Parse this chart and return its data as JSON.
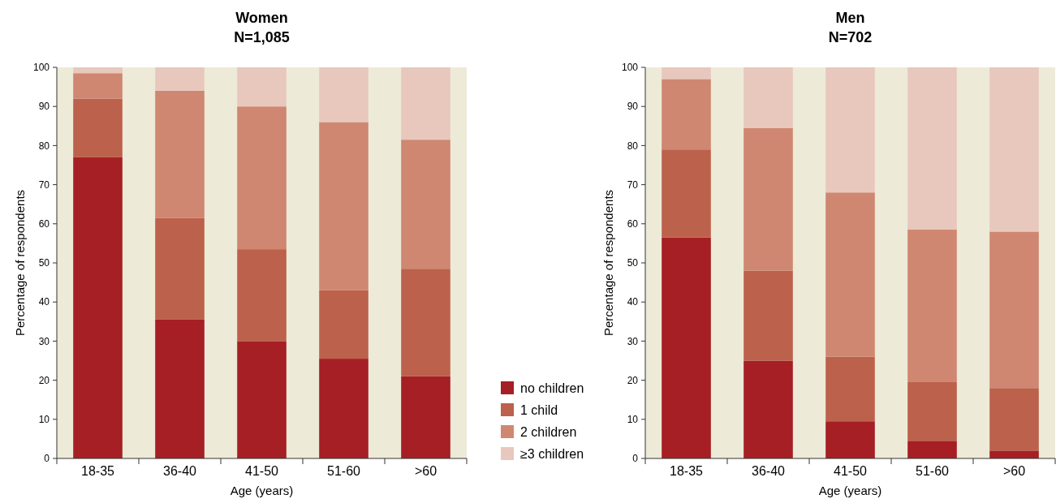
{
  "chart_data": [
    {
      "type": "bar",
      "title": "Women",
      "subtitle": "N=1,085",
      "xlabel": "Age (years)",
      "ylabel": "Percentage of respondents",
      "categories": [
        "18-35",
        "36-40",
        "41-50",
        "51-60",
        ">60"
      ],
      "stacked": true,
      "ylim": [
        0,
        100
      ],
      "yticks": [
        0,
        10,
        20,
        30,
        40,
        50,
        60,
        70,
        80,
        90,
        100
      ],
      "grid": false,
      "legend": "right",
      "series": [
        {
          "name": "no children",
          "color": "#a51f24",
          "values": [
            77,
            35.5,
            30,
            25.5,
            21
          ]
        },
        {
          "name": "1 child",
          "color": "#bc614b",
          "values": [
            15,
            26,
            23.5,
            17.5,
            27.5
          ]
        },
        {
          "name": "2 children",
          "color": "#cf8771",
          "values": [
            6.5,
            32.5,
            36.5,
            43,
            33
          ]
        },
        {
          "name": "≥3 children",
          "color": "#e8c8bd",
          "values": [
            1.5,
            6,
            10,
            14,
            18.5
          ]
        }
      ]
    },
    {
      "type": "bar",
      "title": "Men",
      "subtitle": "N=702",
      "xlabel": "Age (years)",
      "ylabel": "Percentage of respondents",
      "categories": [
        "18-35",
        "36-40",
        "41-50",
        "51-60",
        ">60"
      ],
      "stacked": true,
      "ylim": [
        0,
        100
      ],
      "yticks": [
        0,
        10,
        20,
        30,
        40,
        50,
        60,
        70,
        80,
        90,
        100
      ],
      "grid": false,
      "series": [
        {
          "color": "#a51f24",
          "values": [
            56.5,
            25,
            9.5,
            4.5,
            2
          ]
        },
        {
          "color": "#bc614b",
          "values": [
            22.5,
            23,
            16.5,
            15,
            16
          ]
        },
        {
          "color": "#cf8771",
          "values": [
            18,
            36.5,
            42,
            39,
            40
          ]
        },
        {
          "color": "#e8c8bd",
          "values": [
            3,
            15.5,
            32,
            41.5,
            42
          ]
        }
      ]
    }
  ]
}
